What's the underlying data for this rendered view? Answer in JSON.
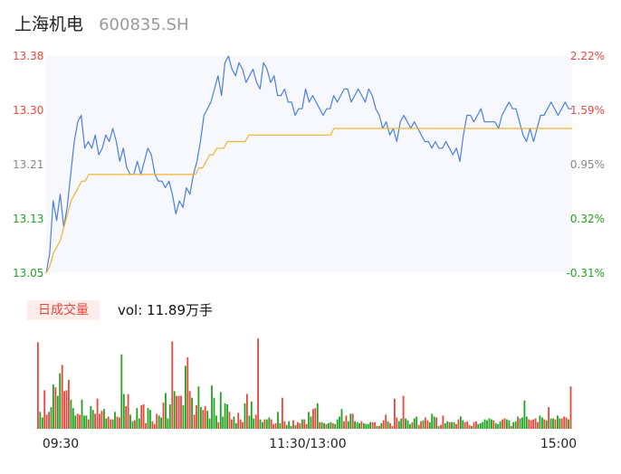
{
  "header": {
    "name": "上海机电",
    "code": "600835.SH"
  },
  "volume_panel": {
    "label": "日成交量",
    "volume_text": "vol: 11.89万手"
  },
  "colors": {
    "up": "#e8463a",
    "down": "#1fa31f",
    "neutral": "#888888",
    "price_line": "#4a7fe0",
    "avg_line": "#f0b429",
    "fill": "#f6f8fd"
  },
  "chart_data": [
    {
      "type": "line",
      "title": "",
      "x_ticks": [
        "09:30",
        "11:30/13:00",
        "15:00"
      ],
      "y_ticks": [
        "13.38",
        "13.30",
        "13.21",
        "13.13",
        "13.05"
      ],
      "y_ticks_right": [
        "2.22%",
        "1.59%",
        "0.95%",
        "0.32%",
        "-0.31%"
      ],
      "ylim": [
        13.05,
        13.38
      ],
      "series": [
        {
          "values": [
            13.05,
            13.08,
            13.16,
            13.13,
            13.17,
            13.12,
            13.15,
            13.2,
            13.25,
            13.28,
            13.29,
            13.24,
            13.25,
            13.24,
            13.26,
            13.23,
            13.24,
            13.26,
            13.25,
            13.27,
            13.25,
            13.22,
            13.24,
            13.21,
            13.2,
            13.2,
            13.22,
            13.2,
            13.22,
            13.24,
            13.23,
            13.2,
            13.19,
            13.19,
            13.18,
            13.19,
            13.17,
            13.14,
            13.16,
            13.15,
            13.18,
            13.17,
            13.2,
            13.22,
            13.25,
            13.29,
            13.3,
            13.31,
            13.33,
            13.35,
            13.32,
            13.37,
            13.38,
            13.36,
            13.35,
            13.37,
            13.36,
            13.34,
            13.35,
            13.36,
            13.34,
            13.33,
            13.37,
            13.36,
            13.34,
            13.35,
            13.32,
            13.32,
            13.33,
            13.31,
            13.31,
            13.29,
            13.3,
            13.3,
            13.33,
            13.31,
            13.32,
            13.31,
            13.3,
            13.29,
            13.3,
            13.3,
            13.32,
            13.31,
            13.32,
            13.33,
            13.33,
            13.31,
            13.32,
            13.33,
            13.32,
            13.31,
            13.33,
            13.32,
            13.3,
            13.29,
            13.27,
            13.28,
            13.26,
            13.27,
            13.25,
            13.28,
            13.29,
            13.28,
            13.27,
            13.28,
            13.27,
            13.26,
            13.25,
            13.25,
            13.24,
            13.25,
            13.24,
            13.24,
            13.25,
            13.24,
            13.23,
            13.24,
            13.22,
            13.26,
            13.29,
            13.29,
            13.28,
            13.29,
            13.3,
            13.28,
            13.28,
            13.28,
            13.28,
            13.27,
            13.29,
            13.3,
            13.31,
            13.3,
            13.3,
            13.28,
            13.26,
            13.25,
            13.27,
            13.25,
            13.27,
            13.29,
            13.29,
            13.3,
            13.31,
            13.3,
            13.29,
            13.3,
            13.31,
            13.3,
            13.3
          ],
          "color": "#4a7fe0"
        },
        {
          "values": [
            13.05,
            13.06,
            13.08,
            13.09,
            13.1,
            13.12,
            13.14,
            13.16,
            13.17,
            13.18,
            13.19,
            13.19,
            13.2,
            13.2,
            13.2,
            13.2,
            13.2,
            13.2,
            13.2,
            13.2,
            13.2,
            13.2,
            13.2,
            13.2,
            13.2,
            13.2,
            13.2,
            13.2,
            13.2,
            13.2,
            13.2,
            13.2,
            13.2,
            13.2,
            13.2,
            13.2,
            13.2,
            13.2,
            13.2,
            13.2,
            13.2,
            13.2,
            13.2,
            13.21,
            13.21,
            13.22,
            13.23,
            13.23,
            13.24,
            13.24,
            13.24,
            13.25,
            13.25,
            13.25,
            13.25,
            13.25,
            13.25,
            13.26,
            13.26,
            13.26,
            13.26,
            13.26,
            13.26,
            13.26,
            13.26,
            13.26,
            13.26,
            13.26,
            13.26,
            13.26,
            13.26,
            13.26,
            13.26,
            13.26,
            13.26,
            13.26,
            13.26,
            13.26,
            13.26,
            13.26,
            13.26,
            13.27,
            13.27,
            13.27,
            13.27,
            13.27,
            13.27,
            13.27,
            13.27,
            13.27,
            13.27,
            13.27,
            13.27,
            13.27,
            13.27,
            13.27,
            13.27,
            13.27,
            13.27,
            13.27,
            13.27,
            13.27,
            13.27,
            13.27,
            13.27,
            13.27,
            13.27,
            13.27,
            13.27,
            13.27,
            13.27,
            13.27,
            13.27,
            13.27,
            13.27,
            13.27,
            13.27,
            13.27,
            13.27,
            13.27,
            13.27,
            13.27,
            13.27,
            13.27,
            13.27,
            13.27,
            13.27,
            13.27,
            13.27,
            13.27,
            13.27,
            13.27,
            13.27,
            13.27,
            13.27,
            13.27,
            13.27,
            13.27,
            13.27,
            13.27,
            13.27,
            13.27,
            13.27,
            13.27,
            13.27,
            13.27,
            13.27,
            13.27,
            13.27
          ],
          "color": "#f0b429"
        }
      ]
    },
    {
      "type": "bar",
      "title": "",
      "ylim": [
        0,
        1
      ],
      "values": [
        0.92,
        0.18,
        0.12,
        0.41,
        0.15,
        0.18,
        0.23,
        0.47,
        0.44,
        0.35,
        0.59,
        0.68,
        0.4,
        0.41,
        0.52,
        0.31,
        0.22,
        0.14,
        0.16,
        0.15,
        0.31,
        0.14,
        0.14,
        0.1,
        0.24,
        0.2,
        0.16,
        0.32,
        0.16,
        0.19,
        0.21,
        0.11,
        0.13,
        0.1,
        0.1,
        0.18,
        0.13,
        0.12,
        0.79,
        0.37,
        0.24,
        0.37,
        0.15,
        0.08,
        0.09,
        0.22,
        0.11,
        0.25,
        0.26,
        0.06,
        0.22,
        0.2,
        0.08,
        0.05,
        0.16,
        0.14,
        0.12,
        0.28,
        0.38,
        0.11,
        0.26,
        0.93,
        0.4,
        0.35,
        0.35,
        0.35,
        0.25,
        0.67,
        0.76,
        0.4,
        0.33,
        0.15,
        0.25,
        0.45,
        0.23,
        0.2,
        0.24,
        0.19,
        0.11,
        0.46,
        0.33,
        0.14,
        0.07,
        0.39,
        0.13,
        0.27,
        0.26,
        0.18,
        0.1,
        0.13,
        0.06,
        0.17,
        0.1,
        0.07,
        0.27,
        0.37,
        0.14,
        0.29,
        0.11,
        0.15,
        0.96,
        0.1,
        0.07,
        0.1,
        0.1,
        0.12,
        0.1,
        0.05,
        0.06,
        0.18,
        0.06,
        0.33,
        0.08,
        0.04,
        0.08,
        0.03,
        0.09,
        0.04,
        0.07,
        0.06,
        0.1,
        0.1,
        0.05,
        0.18,
        0.13,
        0.21,
        0.22,
        0.27,
        0.07,
        0.07,
        0.06,
        0.05,
        0.06,
        0.07,
        0.06,
        0.05,
        0.1,
        0.13,
        0.21,
        0.08,
        0.14,
        0.08,
        0.16,
        0.16,
        0.08,
        0.07,
        0.06,
        0.08,
        0.06,
        0.05,
        0.05,
        0.07,
        0.07,
        0.07,
        0.03,
        0.03,
        0.06,
        0.09,
        0.15,
        0.08,
        0.06,
        0.03,
        0.32,
        0.12,
        0.08,
        0.11,
        0.35,
        0.11,
        0.09,
        0.05,
        0.07,
        0.11,
        0.13,
        0.04,
        0.08,
        0.09,
        0.12,
        0.09,
        0.07,
        0.16,
        0.13,
        0.12,
        0.03,
        0.04,
        0.14,
        0.06,
        0.08,
        0.07,
        0.07,
        0.07,
        0.05,
        0.1,
        0.13,
        0.09,
        0.07,
        0.08,
        0.04,
        0.03,
        0.07,
        0.08,
        0.05,
        0.06,
        0.07,
        0.1,
        0.09,
        0.11,
        0.1,
        0.09,
        0.06,
        0.05,
        0.08,
        0.1,
        0.11,
        0.1,
        0.09,
        0.03,
        0.07,
        0.08,
        0.13,
        0.11,
        0.12,
        0.3,
        0.13,
        0.1,
        0.09,
        0.1,
        0.11,
        0.07,
        0.14,
        0.12,
        0.1,
        0.09,
        0.23,
        0.11,
        0.11,
        0.1,
        0.14,
        0.11,
        0.11,
        0.13,
        0.12,
        0.1,
        0.45
      ],
      "directions": "udduuuddudduuuuddduudddudduuuudduudduudduuddudduuudduuudduddduduuudduuduudduudddddudddduudduuududdduuddudduuudduuddduduuduudduududduddudddduuddudddudddduududuuduuuuddudddudduuduuddduduuddudduudduuuduuddddddduddduudduddudddduuuuuddududdudduuudududdduudduddduudududdddduududuuuudududdddud"
    }
  ]
}
